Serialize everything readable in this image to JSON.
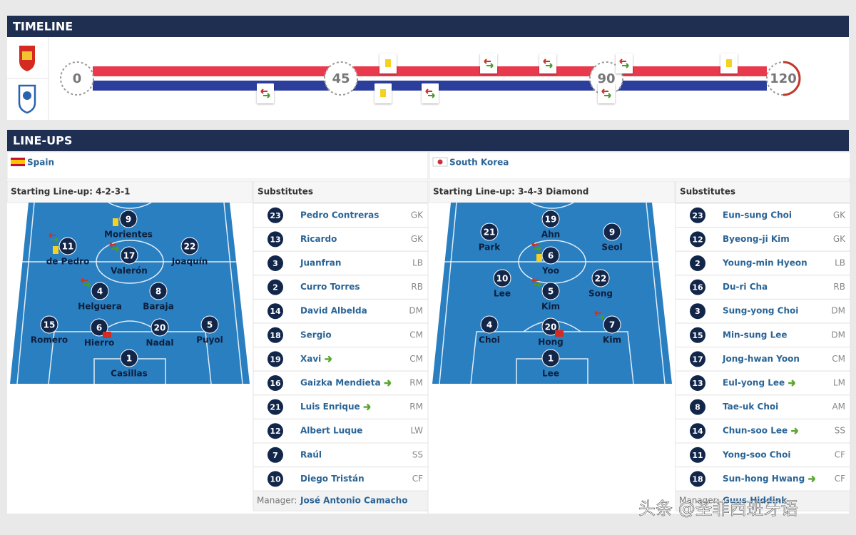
{
  "timeline": {
    "title": "TIMELINE",
    "markers": [
      "0",
      "45",
      "90",
      "120"
    ]
  },
  "lineups": {
    "title": "LINE-UPS",
    "teams": [
      {
        "name": "Spain",
        "formation_label": "Starting Line-up: 4-2-3-1",
        "substitutes_label": "Substitutes",
        "starters": [
          {
            "number": "9",
            "name": "Morientes"
          },
          {
            "number": "11",
            "name": "de Pedro"
          },
          {
            "number": "17",
            "name": "Valerón"
          },
          {
            "number": "22",
            "name": "Joaquín"
          },
          {
            "number": "4",
            "name": "Helguera"
          },
          {
            "number": "8",
            "name": "Baraja"
          },
          {
            "number": "15",
            "name": "Romero"
          },
          {
            "number": "6",
            "name": "Hierro"
          },
          {
            "number": "20",
            "name": "Nadal"
          },
          {
            "number": "5",
            "name": "Puyol"
          },
          {
            "number": "1",
            "name": "Casillas"
          }
        ],
        "substitutes": [
          {
            "number": "23",
            "name": "Pedro Contreras",
            "position": "GK",
            "subbed_in": false
          },
          {
            "number": "13",
            "name": "Ricardo",
            "position": "GK",
            "subbed_in": false
          },
          {
            "number": "3",
            "name": "Juanfran",
            "position": "LB",
            "subbed_in": false
          },
          {
            "number": "2",
            "name": "Curro Torres",
            "position": "RB",
            "subbed_in": false
          },
          {
            "number": "14",
            "name": "David Albelda",
            "position": "DM",
            "subbed_in": false
          },
          {
            "number": "18",
            "name": "Sergio",
            "position": "CM",
            "subbed_in": false
          },
          {
            "number": "19",
            "name": "Xavi",
            "position": "CM",
            "subbed_in": true
          },
          {
            "number": "16",
            "name": "Gaizka Mendieta",
            "position": "RM",
            "subbed_in": true
          },
          {
            "number": "21",
            "name": "Luis Enrique",
            "position": "RM",
            "subbed_in": true
          },
          {
            "number": "12",
            "name": "Albert Luque",
            "position": "LW",
            "subbed_in": false
          },
          {
            "number": "7",
            "name": "Raúl",
            "position": "SS",
            "subbed_in": false
          },
          {
            "number": "10",
            "name": "Diego Tristán",
            "position": "CF",
            "subbed_in": false
          }
        ],
        "manager_label": "Manager:",
        "manager": "José Antonio Camacho"
      },
      {
        "name": "South Korea",
        "formation_label": "Starting Line-up: 3-4-3 Diamond",
        "substitutes_label": "Substitutes",
        "starters": [
          {
            "number": "19",
            "name": "Ahn"
          },
          {
            "number": "21",
            "name": "Park"
          },
          {
            "number": "9",
            "name": "Seol"
          },
          {
            "number": "6",
            "name": "Yoo"
          },
          {
            "number": "10",
            "name": "Lee"
          },
          {
            "number": "22",
            "name": "Song"
          },
          {
            "number": "5",
            "name": "Kim"
          },
          {
            "number": "4",
            "name": "Choi"
          },
          {
            "number": "20",
            "name": "Hong"
          },
          {
            "number": "7",
            "name": "Kim"
          },
          {
            "number": "1",
            "name": "Lee"
          }
        ],
        "substitutes": [
          {
            "number": "23",
            "name": "Eun-sung Choi",
            "position": "GK",
            "subbed_in": false
          },
          {
            "number": "12",
            "name": "Byeong-ji Kim",
            "position": "GK",
            "subbed_in": false
          },
          {
            "number": "2",
            "name": "Young-min Hyeon",
            "position": "LB",
            "subbed_in": false
          },
          {
            "number": "16",
            "name": "Du-ri Cha",
            "position": "RB",
            "subbed_in": false
          },
          {
            "number": "3",
            "name": "Sung-yong Choi",
            "position": "DM",
            "subbed_in": false
          },
          {
            "number": "15",
            "name": "Min-sung Lee",
            "position": "DM",
            "subbed_in": false
          },
          {
            "number": "17",
            "name": "Jong-hwan Yoon",
            "position": "CM",
            "subbed_in": false
          },
          {
            "number": "13",
            "name": "Eul-yong Lee",
            "position": "LM",
            "subbed_in": true
          },
          {
            "number": "8",
            "name": "Tae-uk Choi",
            "position": "AM",
            "subbed_in": false
          },
          {
            "number": "14",
            "name": "Chun-soo Lee",
            "position": "SS",
            "subbed_in": true
          },
          {
            "number": "11",
            "name": "Yong-soo Choi",
            "position": "CF",
            "subbed_in": false
          },
          {
            "number": "18",
            "name": "Sun-hong Hwang",
            "position": "CF",
            "subbed_in": true
          }
        ],
        "manager_label": "Manager:",
        "manager": "Guus Hiddink"
      }
    ]
  },
  "watermark": "头条 @圣菲西班牙语"
}
